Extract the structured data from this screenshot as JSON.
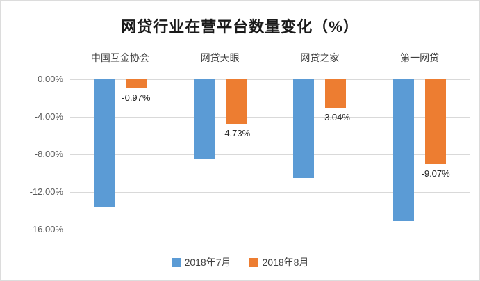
{
  "chart_data": {
    "type": "bar",
    "title": "网贷行业在营平台数量变化（%）",
    "categories": [
      "中国互金协会",
      "网贷天眼",
      "网贷之家",
      "第一网贷"
    ],
    "series": [
      {
        "name": "2018年7月",
        "color": "#5B9BD5",
        "values": [
          -13.6,
          -8.5,
          -10.5,
          -15.1
        ],
        "labels": [
          "",
          "",
          "",
          ""
        ],
        "labels_visible": false
      },
      {
        "name": "2018年8月",
        "color": "#ED7D31",
        "values": [
          -0.97,
          -4.73,
          -3.04,
          -9.07
        ],
        "labels": [
          "-0.97%",
          "-4.73%",
          "-3.04%",
          "-9.07%"
        ],
        "labels_visible": true
      }
    ],
    "y_ticks": [
      "0.00%",
      "-4.00%",
      "-8.00%",
      "-12.00%",
      "-16.00%"
    ],
    "ylim": [
      -16,
      0
    ],
    "grid": true,
    "legend_position": "bottom",
    "bar_colors": {
      "july": "#5B9BD5",
      "august": "#ED7D31"
    }
  }
}
